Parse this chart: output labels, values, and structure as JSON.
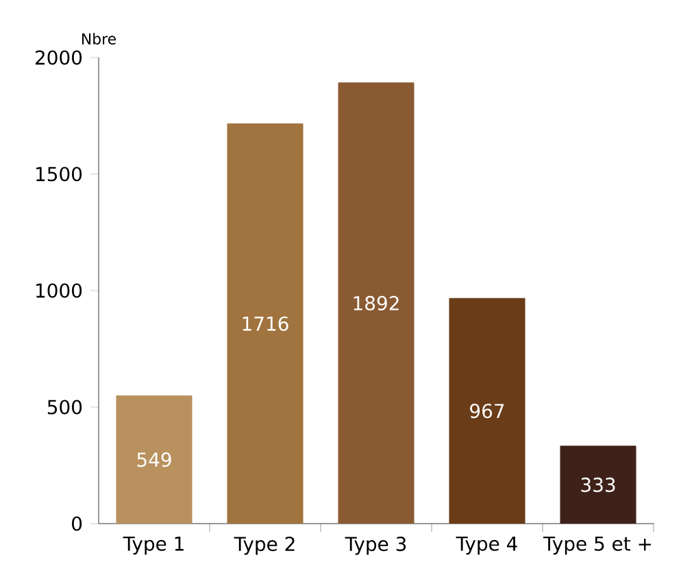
{
  "chart_data": {
    "type": "bar",
    "ylabel": "Nbre",
    "categories": [
      "Type 1",
      "Type 2",
      "Type 3",
      "Type 4",
      "Type 5 et +"
    ],
    "values": [
      549,
      1716,
      1892,
      967,
      333
    ],
    "colors": [
      "#b8915e",
      "#a0733f",
      "#8a5a33",
      "#6a3c18",
      "#3e2219"
    ],
    "ylim": [
      0,
      2000
    ],
    "yticks": [
      0,
      500,
      1000,
      1500,
      2000
    ],
    "data_labels": true,
    "grid": false
  }
}
